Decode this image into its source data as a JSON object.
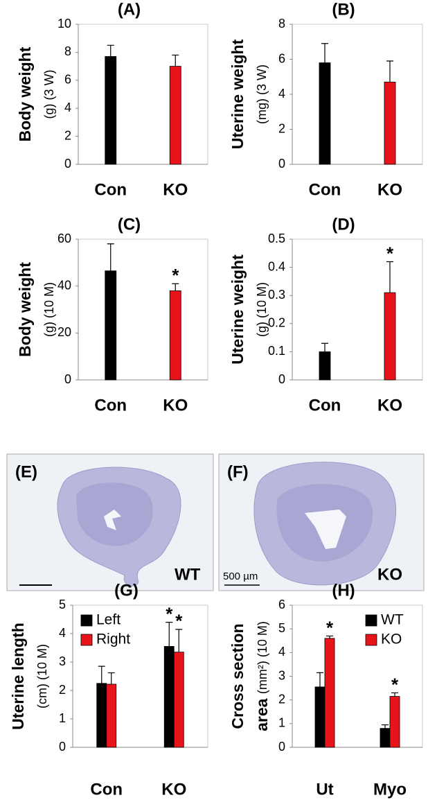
{
  "chart_data": [
    {
      "type": "bar",
      "title": "(A)",
      "ylabel": [
        "Body weight"
      ],
      "ylabel_sub": "(g) (3 W)",
      "categories": [
        "Con",
        "KO"
      ],
      "series": [
        {
          "colors": [
            "#000000",
            "#e8141c"
          ],
          "values": [
            7.7,
            7.0
          ],
          "errors": [
            0.8,
            0.8
          ],
          "annotations": [
            null,
            null
          ]
        }
      ],
      "ylim": [
        0,
        10
      ],
      "yticks": [
        0,
        2,
        4,
        6,
        8,
        10
      ]
    },
    {
      "type": "bar",
      "title": "(B)",
      "ylabel": [
        "Uterine weight"
      ],
      "ylabel_sub": "(mg) (3 W)",
      "categories": [
        "Con",
        "KO"
      ],
      "series": [
        {
          "colors": [
            "#000000",
            "#e8141c"
          ],
          "values": [
            5.8,
            4.7
          ],
          "errors": [
            1.1,
            1.2
          ],
          "annotations": [
            null,
            null
          ]
        }
      ],
      "ylim": [
        0,
        8
      ],
      "yticks": [
        0,
        2,
        4,
        6,
        8
      ]
    },
    {
      "type": "bar",
      "title": "(C)",
      "ylabel": [
        "Body weight"
      ],
      "ylabel_sub": "(g) (10 M)",
      "categories": [
        "Con",
        "KO"
      ],
      "series": [
        {
          "colors": [
            "#000000",
            "#e8141c"
          ],
          "values": [
            46.5,
            38
          ],
          "errors": [
            11.5,
            3
          ],
          "annotations": [
            null,
            "*"
          ]
        }
      ],
      "ylim": [
        0,
        60
      ],
      "yticks": [
        0,
        20,
        40,
        60
      ]
    },
    {
      "type": "bar",
      "title": "(D)",
      "ylabel": [
        "Uterine weight"
      ],
      "ylabel_sub": "(g) (10 M)",
      "categories": [
        "Con",
        "KO"
      ],
      "series": [
        {
          "colors": [
            "#000000",
            "#e8141c"
          ],
          "values": [
            0.1,
            0.31
          ],
          "errors": [
            0.03,
            0.11
          ],
          "annotations": [
            null,
            "*"
          ]
        }
      ],
      "ylim": [
        0,
        0.5
      ],
      "yticks": [
        0,
        0.1,
        0.2,
        0.3,
        0.4,
        0.5
      ]
    },
    {
      "type": "grouped-bar",
      "title": "(G)",
      "ylabel": [
        "Uterine length"
      ],
      "ylabel_sub": "(cm) (10 M)",
      "categories": [
        "Con",
        "KO"
      ],
      "series": [
        {
          "name": "Left",
          "color": "#000000",
          "values": [
            2.25,
            3.55
          ],
          "errors": [
            0.6,
            0.85
          ],
          "annotations": [
            null,
            "*"
          ]
        },
        {
          "name": "Right",
          "color": "#e8141c",
          "values": [
            2.22,
            3.35
          ],
          "errors": [
            0.4,
            0.8
          ],
          "annotations": [
            null,
            "*"
          ]
        }
      ],
      "ylim": [
        0,
        5
      ],
      "yticks": [
        0,
        1,
        2,
        3,
        4,
        5
      ],
      "legend": "top-left"
    },
    {
      "type": "grouped-bar",
      "title": "(H)",
      "ylabel": [
        "Cross section",
        "area"
      ],
      "ylabel_sub": "(mm²) (10 M)",
      "categories": [
        "Ut",
        "Myo"
      ],
      "series": [
        {
          "name": "WT",
          "color": "#000000",
          "values": [
            2.55,
            0.8
          ],
          "errors": [
            0.6,
            0.15
          ],
          "annotations": [
            null,
            null
          ]
        },
        {
          "name": "KO",
          "color": "#e8141c",
          "values": [
            4.6,
            2.15
          ],
          "errors": [
            0.1,
            0.15
          ],
          "annotations": [
            "*",
            "*"
          ]
        }
      ],
      "ylim": [
        0,
        6
      ],
      "yticks": [
        0,
        1,
        2,
        3,
        4,
        5,
        6
      ],
      "legend": "top-right"
    }
  ],
  "images": [
    {
      "label": "(E)",
      "caption": "WT"
    },
    {
      "label": "(F)",
      "caption": "KO",
      "scale": "500 µm"
    }
  ]
}
